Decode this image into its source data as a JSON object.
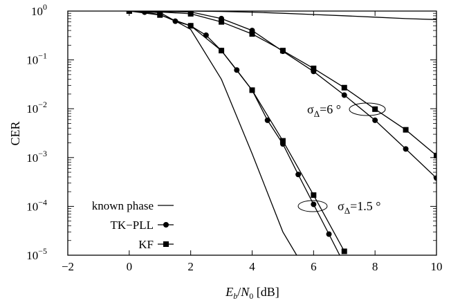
{
  "chart_data": {
    "type": "line",
    "title": "",
    "xlabel": "E_b/N_0 [dB]",
    "xlabel_parts": {
      "E": "E",
      "b": "b",
      "slash": "/",
      "N": "N",
      "zero": "0",
      "unit": " [dB]"
    },
    "ylabel": "CER",
    "xlim": [
      -2,
      10
    ],
    "ylim": [
      1e-05,
      1
    ],
    "yscale": "log",
    "grid": false,
    "legend_position": "bottom-left",
    "x_ticks": [
      "−2",
      "0",
      "2",
      "4",
      "6",
      "8",
      "10"
    ],
    "x_tick_values": [
      -2,
      0,
      2,
      4,
      6,
      8,
      10
    ],
    "y_ticks": [
      {
        "value": 1,
        "base": "10",
        "exp": "0"
      },
      {
        "value": 0.1,
        "base": "10",
        "exp": "−1"
      },
      {
        "value": 0.01,
        "base": "10",
        "exp": "−2"
      },
      {
        "value": 0.001,
        "base": "10",
        "exp": "−3"
      },
      {
        "value": 0.0001,
        "base": "10",
        "exp": "−4"
      },
      {
        "value": 1e-05,
        "base": "10",
        "exp": "−5"
      }
    ],
    "legend": [
      {
        "label": "known phase",
        "marker": "none"
      },
      {
        "label": "TK−PLL",
        "marker": "circle"
      },
      {
        "label": "KF",
        "marker": "square"
      }
    ],
    "series": [
      {
        "name": "known phase",
        "group": "σΔ=1.5 °",
        "marker": "none",
        "x": [
          0,
          1,
          2,
          3,
          4,
          5,
          5.45
        ],
        "y": [
          1.0,
          0.93,
          0.42,
          0.04,
          0.0012,
          3e-05,
          1e-05
        ]
      },
      {
        "name": "known phase",
        "group": "σΔ=6 °",
        "marker": "none",
        "x": [
          0,
          1,
          2,
          3,
          4,
          5,
          6,
          7,
          8,
          9,
          10
        ],
        "y": [
          1.0,
          1.0,
          1.0,
          0.98,
          0.95,
          0.9,
          0.85,
          0.8,
          0.75,
          0.7,
          0.67
        ]
      },
      {
        "name": "TK−PLL",
        "group": "σΔ=1.5 °",
        "marker": "circle",
        "x": [
          0,
          0.5,
          1,
          1.5,
          2,
          2.5,
          3,
          3.5,
          4,
          4.5,
          5,
          5.5,
          6,
          6.5,
          7
        ],
        "y": [
          1.0,
          0.95,
          0.85,
          0.62,
          0.5,
          0.32,
          0.155,
          0.062,
          0.024,
          0.0058,
          0.0019,
          0.00045,
          0.00011,
          2.7e-05,
          6.5e-06
        ]
      },
      {
        "name": "TK−PLL",
        "group": "σΔ=6 °",
        "marker": "circle",
        "x": [
          0,
          1,
          2,
          3,
          4,
          5,
          6,
          7,
          8,
          9,
          10
        ],
        "y": [
          1.0,
          0.98,
          0.96,
          0.7,
          0.4,
          0.15,
          0.058,
          0.019,
          0.0058,
          0.0015,
          0.00038
        ]
      },
      {
        "name": "KF",
        "group": "σΔ=1.5 °",
        "marker": "square",
        "x": [
          0,
          1,
          2,
          3,
          4,
          5,
          6,
          7
        ],
        "y": [
          1.0,
          0.83,
          0.5,
          0.155,
          0.024,
          0.0022,
          0.00017,
          1.2e-05
        ]
      },
      {
        "name": "KF",
        "group": "σΔ=6 °",
        "marker": "square",
        "x": [
          0,
          1,
          2,
          3,
          4,
          5,
          6,
          7,
          8,
          9,
          10
        ],
        "y": [
          1.0,
          0.96,
          0.88,
          0.6,
          0.34,
          0.155,
          0.067,
          0.027,
          0.0098,
          0.0037,
          0.0011
        ]
      }
    ],
    "annotations": [
      {
        "text": "σ",
        "sub": "Δ",
        "rest": "=6 °",
        "target": "σΔ=6 °"
      },
      {
        "text": "σ",
        "sub": "Δ",
        "rest": "=1.5 °",
        "target": "σΔ=1.5 °"
      }
    ]
  }
}
